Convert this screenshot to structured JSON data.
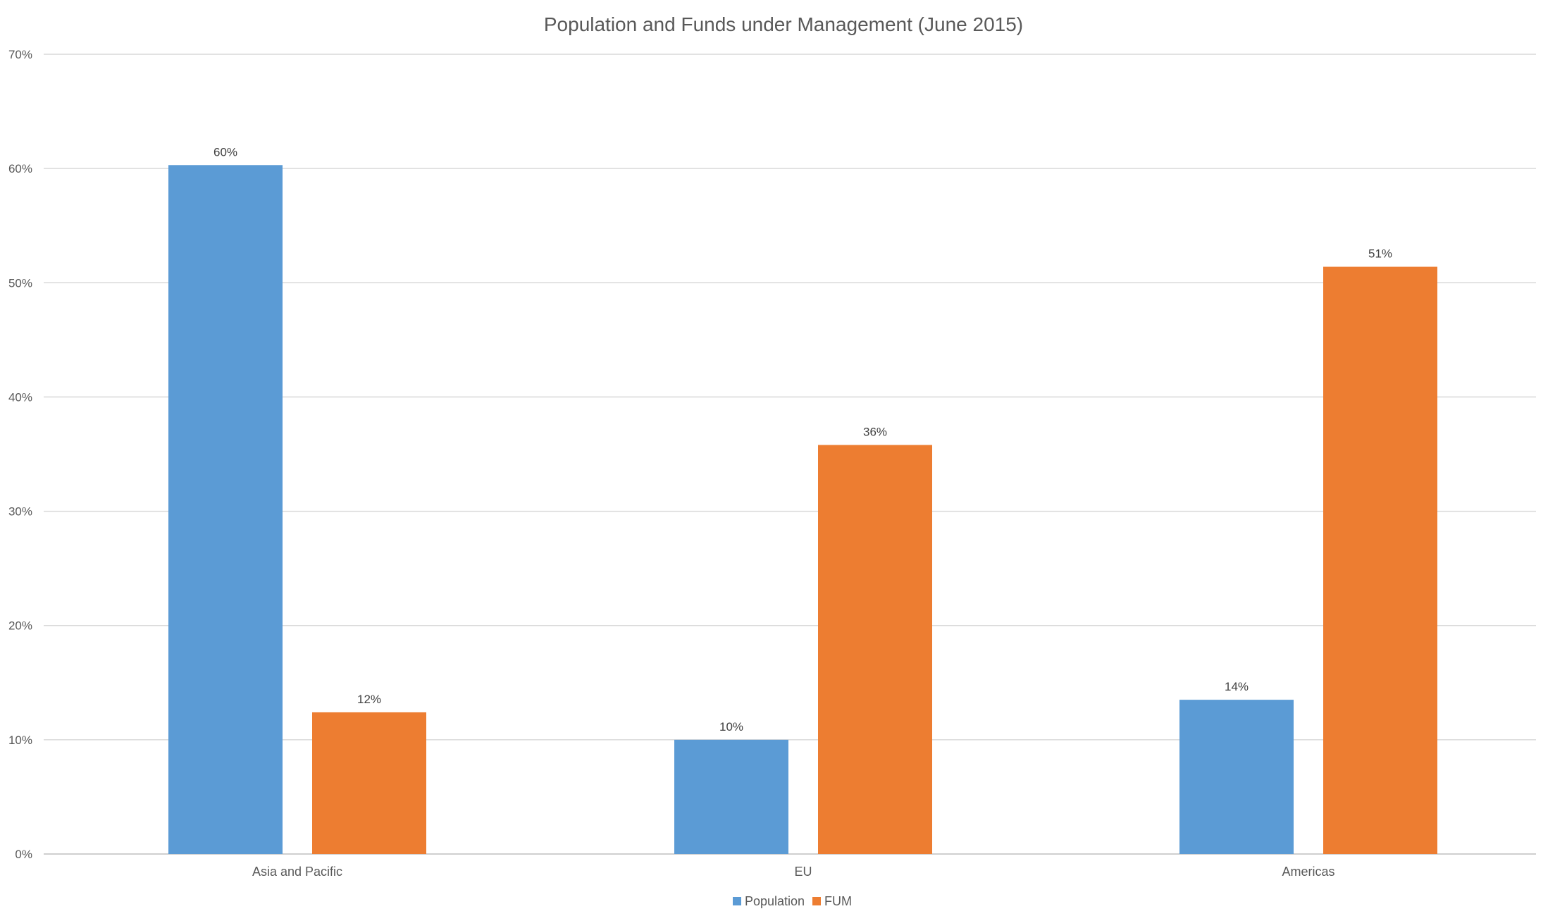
{
  "chart_data": {
    "type": "bar",
    "title": "Population and Funds under Management (June 2015)",
    "xlabel": "",
    "ylabel": "",
    "categories": [
      "Asia and Pacific",
      "EU",
      "Americas"
    ],
    "series": [
      {
        "name": "Population",
        "color": "#5b9bd5",
        "values": [
          60.3,
          10.0,
          13.5
        ],
        "labels": [
          "60%",
          "10%",
          "14%"
        ]
      },
      {
        "name": "FUM",
        "color": "#ed7d31",
        "values": [
          12.4,
          35.8,
          51.4
        ],
        "labels": [
          "12%",
          "36%",
          "51%"
        ]
      }
    ],
    "ylim": [
      0,
      70
    ],
    "yticks": [
      0,
      10,
      20,
      30,
      40,
      50,
      60,
      70
    ],
    "ytick_labels": [
      "0%",
      "10%",
      "20%",
      "30%",
      "40%",
      "50%",
      "60%",
      "70%"
    ],
    "grid": true,
    "legend_position": "bottom"
  }
}
